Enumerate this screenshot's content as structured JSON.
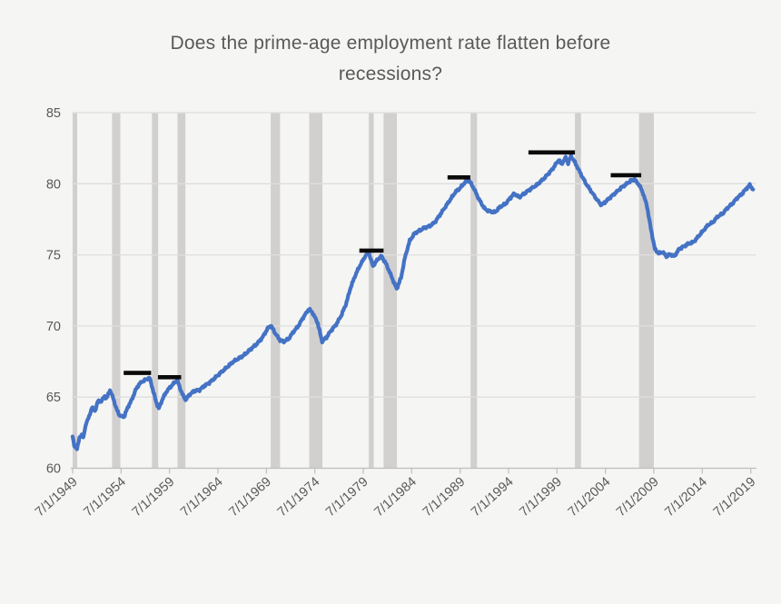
{
  "page": {
    "background": "#F5F5F4"
  },
  "chart_data": {
    "type": "line",
    "title": "Does the prime-age employment rate flatten before recessions?",
    "title_lines": [
      "Does the prime-age employment rate flatten before",
      "recessions?"
    ],
    "legend": "none",
    "grid": "horizontal-only",
    "x_tick_labels": [
      "7/1/1949",
      "7/1/1954",
      "7/1/1959",
      "7/1/1964",
      "7/1/1969",
      "7/1/1974",
      "7/1/1979",
      "7/1/1984",
      "7/1/1989",
      "7/1/1994",
      "7/1/1999",
      "7/1/2004",
      "7/1/2009",
      "7/1/2014",
      "7/1/2019"
    ],
    "x_tick_years": [
      1949.5,
      1954.5,
      1959.5,
      1964.5,
      1969.5,
      1974.5,
      1979.5,
      1984.5,
      1989.5,
      1994.5,
      1999.5,
      2004.5,
      2009.5,
      2014.5,
      2019.5
    ],
    "x_range": [
      1949.5,
      2020.0
    ],
    "y_ticks": [
      60,
      65,
      70,
      75,
      80,
      85
    ],
    "y_range": [
      60,
      85
    ],
    "series": [
      {
        "name": "Prime-age employment rate",
        "color": "#4472C4",
        "points": [
          [
            1949.5,
            62.3
          ],
          [
            1949.67,
            61.5
          ],
          [
            1949.95,
            61.4
          ],
          [
            1950.2,
            62.1
          ],
          [
            1950.45,
            62.4
          ],
          [
            1950.6,
            62.1
          ],
          [
            1950.9,
            63.2
          ],
          [
            1951.2,
            63.6
          ],
          [
            1951.5,
            64.3
          ],
          [
            1951.8,
            64.0
          ],
          [
            1952.1,
            64.7
          ],
          [
            1952.45,
            64.7
          ],
          [
            1952.8,
            65.05
          ],
          [
            1953.0,
            64.9
          ],
          [
            1953.35,
            65.5
          ],
          [
            1953.7,
            64.9
          ],
          [
            1954.0,
            64.2
          ],
          [
            1954.35,
            63.7
          ],
          [
            1954.8,
            63.6
          ],
          [
            1955.2,
            64.3
          ],
          [
            1955.6,
            64.8
          ],
          [
            1956.0,
            65.5
          ],
          [
            1956.35,
            65.9
          ],
          [
            1956.7,
            66.1
          ],
          [
            1957.1,
            66.25
          ],
          [
            1957.45,
            66.35
          ],
          [
            1957.75,
            65.6
          ],
          [
            1958.1,
            64.7
          ],
          [
            1958.4,
            64.2
          ],
          [
            1958.8,
            64.9
          ],
          [
            1959.2,
            65.4
          ],
          [
            1959.7,
            65.8
          ],
          [
            1960.0,
            66.0
          ],
          [
            1960.3,
            66.2
          ],
          [
            1960.6,
            65.6
          ],
          [
            1960.9,
            65.1
          ],
          [
            1961.15,
            64.8
          ],
          [
            1961.6,
            65.2
          ],
          [
            1962.1,
            65.45
          ],
          [
            1962.6,
            65.5
          ],
          [
            1963.1,
            65.8
          ],
          [
            1963.6,
            66.0
          ],
          [
            1964.1,
            66.3
          ],
          [
            1964.6,
            66.6
          ],
          [
            1965.1,
            66.9
          ],
          [
            1965.6,
            67.2
          ],
          [
            1966.1,
            67.5
          ],
          [
            1966.6,
            67.7
          ],
          [
            1967.1,
            67.9
          ],
          [
            1967.6,
            68.2
          ],
          [
            1968.1,
            68.5
          ],
          [
            1968.6,
            68.8
          ],
          [
            1969.1,
            69.2
          ],
          [
            1969.7,
            69.9
          ],
          [
            1970.0,
            70.0
          ],
          [
            1970.4,
            69.5
          ],
          [
            1970.9,
            69.0
          ],
          [
            1971.3,
            68.9
          ],
          [
            1971.8,
            69.1
          ],
          [
            1972.3,
            69.6
          ],
          [
            1972.8,
            70.0
          ],
          [
            1973.3,
            70.6
          ],
          [
            1973.9,
            71.2
          ],
          [
            1974.3,
            70.9
          ],
          [
            1974.8,
            70.2
          ],
          [
            1975.25,
            68.9
          ],
          [
            1975.7,
            69.2
          ],
          [
            1976.2,
            69.7
          ],
          [
            1976.7,
            70.1
          ],
          [
            1977.2,
            70.7
          ],
          [
            1977.7,
            71.5
          ],
          [
            1978.2,
            72.7
          ],
          [
            1978.7,
            73.6
          ],
          [
            1979.2,
            74.3
          ],
          [
            1979.7,
            74.9
          ],
          [
            1980.05,
            75.2
          ],
          [
            1980.5,
            74.2
          ],
          [
            1981.0,
            74.7
          ],
          [
            1981.4,
            74.9
          ],
          [
            1981.9,
            74.3
          ],
          [
            1982.4,
            73.5
          ],
          [
            1982.95,
            72.6
          ],
          [
            1983.4,
            73.4
          ],
          [
            1983.8,
            74.8
          ],
          [
            1984.3,
            76.0
          ],
          [
            1984.8,
            76.5
          ],
          [
            1985.3,
            76.7
          ],
          [
            1985.8,
            76.9
          ],
          [
            1986.3,
            77.0
          ],
          [
            1986.9,
            77.3
          ],
          [
            1987.4,
            77.8
          ],
          [
            1988.0,
            78.4
          ],
          [
            1988.5,
            78.9
          ],
          [
            1989.0,
            79.4
          ],
          [
            1989.5,
            79.7
          ],
          [
            1990.0,
            80.1
          ],
          [
            1990.4,
            80.25
          ],
          [
            1990.9,
            79.7
          ],
          [
            1991.3,
            79.1
          ],
          [
            1991.7,
            78.6
          ],
          [
            1992.1,
            78.2
          ],
          [
            1992.6,
            78.05
          ],
          [
            1993.1,
            78.0
          ],
          [
            1993.6,
            78.35
          ],
          [
            1994.2,
            78.6
          ],
          [
            1994.8,
            79.1
          ],
          [
            1995.1,
            79.3
          ],
          [
            1995.6,
            79.05
          ],
          [
            1996.1,
            79.3
          ],
          [
            1996.7,
            79.6
          ],
          [
            1997.4,
            79.9
          ],
          [
            1998.2,
            80.4
          ],
          [
            1999.0,
            81.0
          ],
          [
            1999.7,
            81.7
          ],
          [
            1999.95,
            81.35
          ],
          [
            2000.4,
            81.85
          ],
          [
            2000.65,
            81.45
          ],
          [
            2000.95,
            81.95
          ],
          [
            2001.35,
            81.5
          ],
          [
            2001.8,
            80.9
          ],
          [
            2002.1,
            80.5
          ],
          [
            2002.5,
            80.0
          ],
          [
            2003.1,
            79.4
          ],
          [
            2003.6,
            78.9
          ],
          [
            2004.1,
            78.5
          ],
          [
            2004.6,
            78.8
          ],
          [
            2005.1,
            79.1
          ],
          [
            2005.6,
            79.4
          ],
          [
            2006.1,
            79.7
          ],
          [
            2006.6,
            79.95
          ],
          [
            2007.1,
            80.2
          ],
          [
            2007.5,
            80.3
          ],
          [
            2008.0,
            79.9
          ],
          [
            2008.4,
            79.3
          ],
          [
            2008.8,
            78.4
          ],
          [
            2009.2,
            76.8
          ],
          [
            2009.6,
            75.4
          ],
          [
            2010.0,
            75.1
          ],
          [
            2010.4,
            75.2
          ],
          [
            2010.8,
            74.9
          ],
          [
            2011.2,
            75.05
          ],
          [
            2011.6,
            74.9
          ],
          [
            2012.1,
            75.4
          ],
          [
            2012.6,
            75.6
          ],
          [
            2013.1,
            75.8
          ],
          [
            2013.6,
            75.9
          ],
          [
            2014.1,
            76.3
          ],
          [
            2014.6,
            76.7
          ],
          [
            2015.1,
            77.1
          ],
          [
            2015.6,
            77.3
          ],
          [
            2016.1,
            77.7
          ],
          [
            2016.6,
            77.9
          ],
          [
            2017.1,
            78.3
          ],
          [
            2017.6,
            78.6
          ],
          [
            2018.1,
            79.0
          ],
          [
            2018.6,
            79.3
          ],
          [
            2019.1,
            79.7
          ],
          [
            2019.4,
            79.9
          ],
          [
            2019.75,
            79.6
          ]
        ]
      }
    ],
    "recessions": [
      [
        1949.5,
        1949.97
      ],
      [
        1953.57,
        1954.42
      ],
      [
        1957.68,
        1958.33
      ],
      [
        1960.33,
        1961.15
      ],
      [
        1969.95,
        1970.92
      ],
      [
        1973.92,
        1975.28
      ],
      [
        1980.07,
        1980.58
      ],
      [
        1981.6,
        1982.97
      ],
      [
        1990.58,
        1991.25
      ],
      [
        2001.35,
        2001.98
      ],
      [
        2007.97,
        2009.5
      ]
    ],
    "flat_markers": [
      {
        "from": 1954.77,
        "to": 1957.6,
        "value": 66.7
      },
      {
        "from": 1958.3,
        "to": 1960.7,
        "value": 66.4
      },
      {
        "from": 1979.1,
        "to": 1981.6,
        "value": 75.3
      },
      {
        "from": 1988.2,
        "to": 1990.55,
        "value": 80.45
      },
      {
        "from": 1996.55,
        "to": 2001.35,
        "value": 82.2
      },
      {
        "from": 2005.05,
        "to": 2008.2,
        "value": 80.6
      }
    ],
    "style": {
      "band_color": "#D1D0CF",
      "grid_color": "#DFDEDD",
      "axis_color": "#BFBEBD",
      "text_color": "#595959",
      "title_color": "#595959",
      "marker_color": "#0A0A0A",
      "background": "#F5F5F4"
    }
  }
}
